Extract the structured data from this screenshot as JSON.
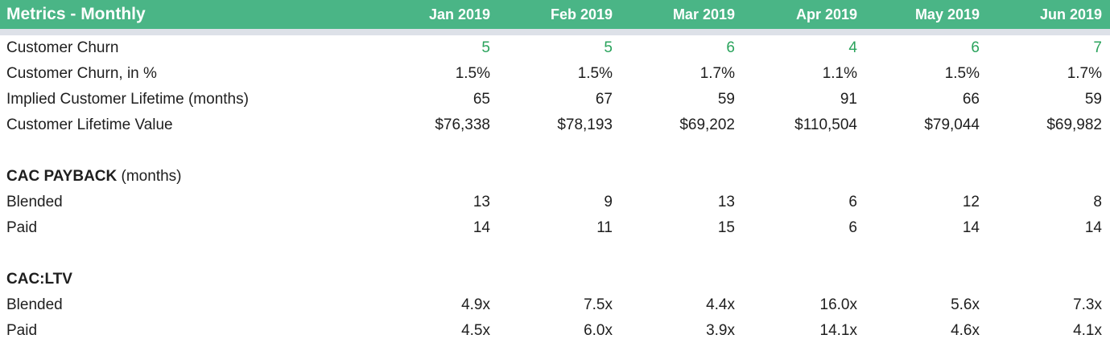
{
  "header": {
    "title": "Metrics - Monthly",
    "columns": [
      "Jan 2019",
      "Feb 2019",
      "Mar 2019",
      "Apr 2019",
      "May 2019",
      "Jun 2019"
    ]
  },
  "colors": {
    "header_bg": "#4ab586",
    "header_text": "#ffffff",
    "divider": "#dde1e8",
    "green_value": "#2aa35c",
    "text": "#1e1e1e",
    "page_bg": "#ffffff"
  },
  "rows": [
    {
      "type": "data",
      "label": "Customer Churn",
      "value_style": "green",
      "values": [
        "5",
        "5",
        "6",
        "4",
        "6",
        "7"
      ]
    },
    {
      "type": "data",
      "label": "Customer Churn, in %",
      "values": [
        "1.5%",
        "1.5%",
        "1.7%",
        "1.1%",
        "1.5%",
        "1.7%"
      ]
    },
    {
      "type": "data",
      "label": "Implied Customer Lifetime (months)",
      "values": [
        "65",
        "67",
        "59",
        "91",
        "66",
        "59"
      ]
    },
    {
      "type": "data",
      "label": "Customer Lifetime Value",
      "values": [
        "$76,338",
        "$78,193",
        "$69,202",
        "$110,504",
        "$79,044",
        "$69,982"
      ]
    },
    {
      "type": "spacer"
    },
    {
      "type": "section",
      "label_bold": "CAC PAYBACK",
      "label_rest": " (months)"
    },
    {
      "type": "data",
      "label": "Blended",
      "values": [
        "13",
        "9",
        "13",
        "6",
        "12",
        "8"
      ]
    },
    {
      "type": "data",
      "label": "Paid",
      "values": [
        "14",
        "11",
        "15",
        "6",
        "14",
        "14"
      ]
    },
    {
      "type": "spacer"
    },
    {
      "type": "section",
      "label_bold": "CAC:LTV",
      "label_rest": ""
    },
    {
      "type": "data",
      "label": "Blended",
      "values": [
        "4.9x",
        "7.5x",
        "4.4x",
        "16.0x",
        "5.6x",
        "7.3x"
      ]
    },
    {
      "type": "data",
      "label": "Paid",
      "values": [
        "4.5x",
        "6.0x",
        "3.9x",
        "14.1x",
        "4.6x",
        "4.1x"
      ]
    }
  ]
}
